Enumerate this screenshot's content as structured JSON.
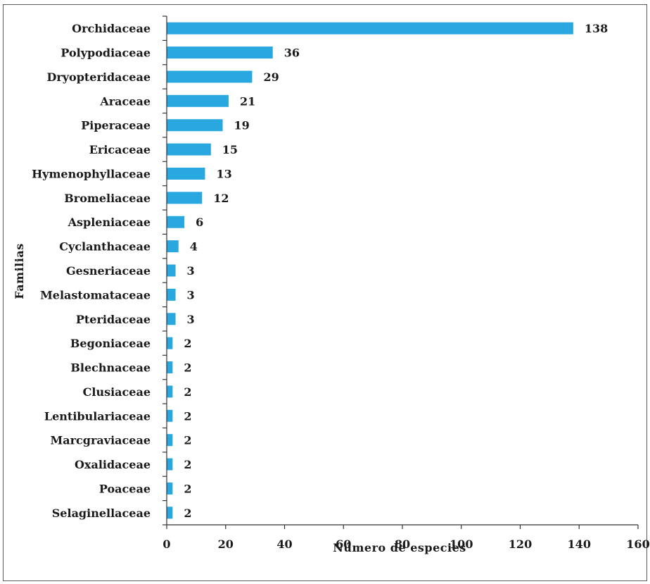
{
  "chart_data": {
    "type": "bar",
    "orientation": "horizontal",
    "title": "",
    "xlabel": "Número de  especies",
    "ylabel": "Familias",
    "xlim": [
      0,
      160
    ],
    "xticks": [
      0,
      20,
      40,
      60,
      80,
      100,
      120,
      140,
      160
    ],
    "grid": false,
    "legend": "none",
    "bar_color": "#29a8e0",
    "categories": [
      "Orchidaceae",
      "Polypodiaceae",
      "Dryopteridaceae",
      "Araceae",
      "Piperaceae",
      "Ericaceae",
      "Hymenophyllaceae",
      "Bromeliaceae",
      "Aspleniaceae",
      "Cyclanthaceae",
      "Gesneriaceae",
      "Melastomataceae",
      "Pteridaceae",
      "Begoniaceae",
      "Blechnaceae",
      "Clusiaceae",
      "Lentibulariaceae",
      "Marcgraviaceae",
      "Oxalidaceae",
      "Poaceae",
      "Selaginellaceae"
    ],
    "values": [
      138,
      36,
      29,
      21,
      19,
      15,
      13,
      12,
      6,
      4,
      3,
      3,
      3,
      2,
      2,
      2,
      2,
      2,
      2,
      2,
      2
    ]
  }
}
